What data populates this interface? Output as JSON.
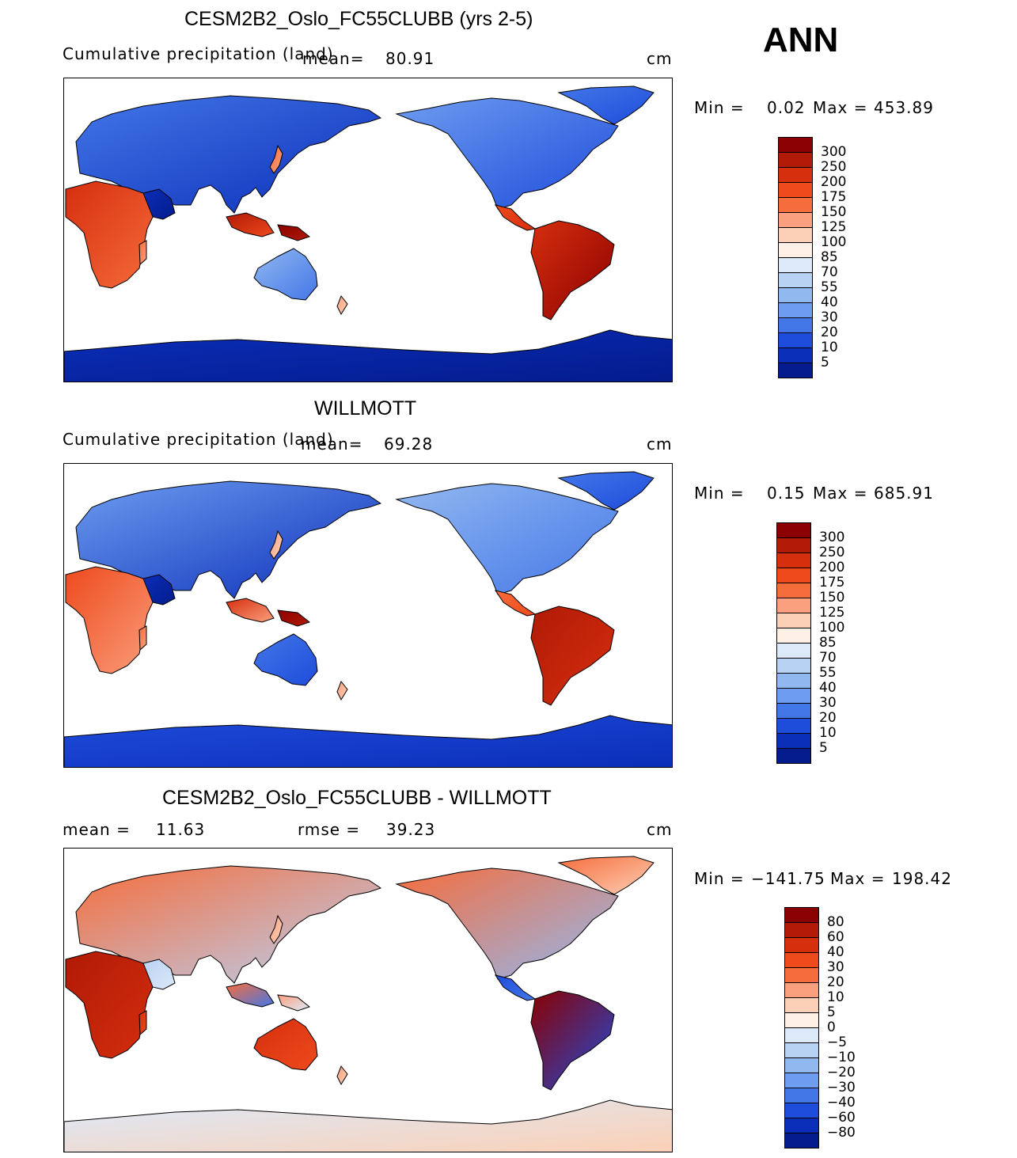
{
  "season": "ANN",
  "panels": [
    {
      "title": "CESM2B2_Oslo_FC55CLUBB (yrs 2-5)",
      "left_label": "Cumulative precipitation (land)",
      "mean_label": "mean=",
      "mean_value": "80.91",
      "units": "cm",
      "min_label": "Min =",
      "min_value": "0.02",
      "max_label": "Max =",
      "max_value": "453.89",
      "palette": "abs",
      "variant": 0
    },
    {
      "title": "WILLMOTT",
      "left_label": "Cumulative precipitation (land)",
      "mean_label": "mean=",
      "mean_value": "69.28",
      "units": "cm",
      "min_label": "Min =",
      "min_value": "0.15",
      "max_label": "Max =",
      "max_value": "685.91",
      "palette": "abs",
      "variant": 1
    },
    {
      "title": "CESM2B2_Oslo_FC55CLUBB - WILLMOTT",
      "left_label": "mean =",
      "mean_label": "",
      "mean_value": "11.63",
      "rmse_label": "rmse =",
      "rmse_value": "39.23",
      "units": "cm",
      "min_label": "Min =",
      "min_value": "−141.75",
      "max_label": "Max =",
      "max_value": "198.42",
      "palette": "diff",
      "variant": 2
    }
  ],
  "colorbars": {
    "abs": {
      "labels": [
        "300",
        "250",
        "200",
        "175",
        "150",
        "125",
        "100",
        "85",
        "70",
        "55",
        "40",
        "30",
        "20",
        "10",
        "5"
      ],
      "colors": [
        "#8b0000",
        "#b01a06",
        "#d62f0e",
        "#ee4a1c",
        "#f66d3c",
        "#faa07e",
        "#fcd0b6",
        "#fef0e4",
        "#dce9f8",
        "#b8d2f4",
        "#92b8f0",
        "#6d9cf0",
        "#4377e8",
        "#1e4cdb",
        "#0b2eb8",
        "#031b8c"
      ]
    },
    "diff": {
      "labels": [
        "80",
        "60",
        "40",
        "30",
        "20",
        "10",
        "5",
        "0",
        "−5",
        "−10",
        "−20",
        "−30",
        "−40",
        "−60",
        "−80"
      ],
      "colors": [
        "#8b0000",
        "#b01a06",
        "#d62f0e",
        "#ee4a1c",
        "#f66d3c",
        "#faa07e",
        "#fcd0b6",
        "#fef0e4",
        "#dce9f8",
        "#b8d2f4",
        "#92b8f0",
        "#6d9cf0",
        "#4377e8",
        "#1e4cdb",
        "#0b2eb8",
        "#031b8c"
      ]
    }
  }
}
